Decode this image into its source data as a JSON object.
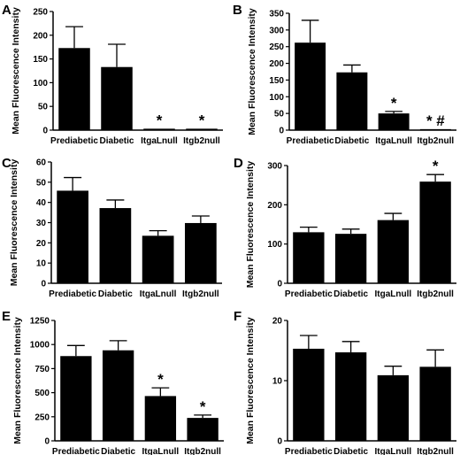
{
  "chart_data": [
    {
      "panel_label": "A",
      "type": "bar",
      "ylabel": "Mean Fluorescence Intensity",
      "categories": [
        "Prediabetic",
        "Diabetic",
        "ItgaLnull",
        "Itgb2null"
      ],
      "values": [
        173,
        133,
        3,
        3
      ],
      "errors": [
        45,
        48,
        0,
        0
      ],
      "annotations": [
        "",
        "",
        "*",
        "*"
      ],
      "ylim": [
        0,
        250
      ],
      "yticks": [
        0,
        50,
        100,
        150,
        200,
        250
      ],
      "ytick_labels": [
        "0",
        "50",
        "100",
        "150",
        "200",
        "250"
      ]
    },
    {
      "panel_label": "B",
      "type": "bar",
      "ylabel": "Mean Fluorescence Intensity",
      "categories": [
        "Prediabetic",
        "Diabetic",
        "ItgaLnull",
        "Itgb2null"
      ],
      "values": [
        262,
        173,
        50,
        3
      ],
      "errors": [
        67,
        22,
        6,
        0
      ],
      "annotations": [
        "",
        "",
        "*",
        "* #"
      ],
      "ylim": [
        0,
        350
      ],
      "yticks": [
        0,
        50,
        100,
        150,
        200,
        250,
        300,
        350
      ],
      "ytick_labels": [
        "0",
        "50",
        "100",
        "150",
        "200",
        "250",
        "300",
        "350"
      ]
    },
    {
      "panel_label": "C",
      "type": "bar",
      "ylabel": "Mean Fluorescence Intensity",
      "categories": [
        "Prediabetic",
        "Diabetic",
        "ItgaLnull",
        "Itgb2null"
      ],
      "values": [
        45.8,
        37.2,
        23.5,
        29.8
      ],
      "errors": [
        6.5,
        4,
        2.5,
        3.5
      ],
      "annotations": [
        "",
        "",
        "",
        ""
      ],
      "ylim": [
        0,
        60
      ],
      "yticks": [
        0,
        10,
        20,
        30,
        40,
        50,
        60
      ],
      "ytick_labels": [
        "0",
        "10",
        "20",
        "30",
        "40",
        "50",
        "60"
      ]
    },
    {
      "panel_label": "D",
      "type": "bar",
      "ylabel": "Mean Fluorescence Intensity",
      "categories": [
        "Prediabetic",
        "Diabetic",
        "ItgaLnull",
        "Itgb2null"
      ],
      "values": [
        130,
        126,
        161,
        259
      ],
      "errors": [
        13,
        12,
        17,
        18
      ],
      "annotations": [
        "",
        "",
        "",
        "*"
      ],
      "ylim": [
        0,
        300
      ],
      "yticks": [
        0,
        100,
        200,
        300
      ],
      "ytick_labels": [
        "0",
        "100",
        "200",
        "300"
      ]
    },
    {
      "panel_label": "E",
      "type": "bar",
      "ylabel": "Mean Fluorescence Intensity",
      "categories": [
        "Prediabetic",
        "Diabetic",
        "ItgaLnull",
        "Itgb2null"
      ],
      "values": [
        880,
        940,
        465,
        238
      ],
      "errors": [
        110,
        100,
        85,
        30
      ],
      "annotations": [
        "",
        "",
        "*",
        "*"
      ],
      "ylim": [
        0,
        1250
      ],
      "yticks": [
        0,
        250,
        500,
        750,
        1000,
        1250
      ],
      "ytick_labels": [
        "0",
        "250",
        "500",
        "750",
        "1000",
        "1250"
      ]
    },
    {
      "panel_label": "F",
      "type": "bar",
      "ylabel": "Mean Fluorescence Intensity",
      "categories": [
        "Prediabetic",
        "Diabetic",
        "ItgaLnull",
        "Itgb2null"
      ],
      "values": [
        15.3,
        14.7,
        10.9,
        12.3
      ],
      "errors": [
        2.2,
        1.8,
        1.5,
        2.8
      ],
      "annotations": [
        "",
        "",
        "",
        ""
      ],
      "ylim": [
        0,
        20
      ],
      "yticks": [
        0,
        10,
        20
      ],
      "ytick_labels": [
        "0",
        "10",
        "20"
      ]
    }
  ]
}
